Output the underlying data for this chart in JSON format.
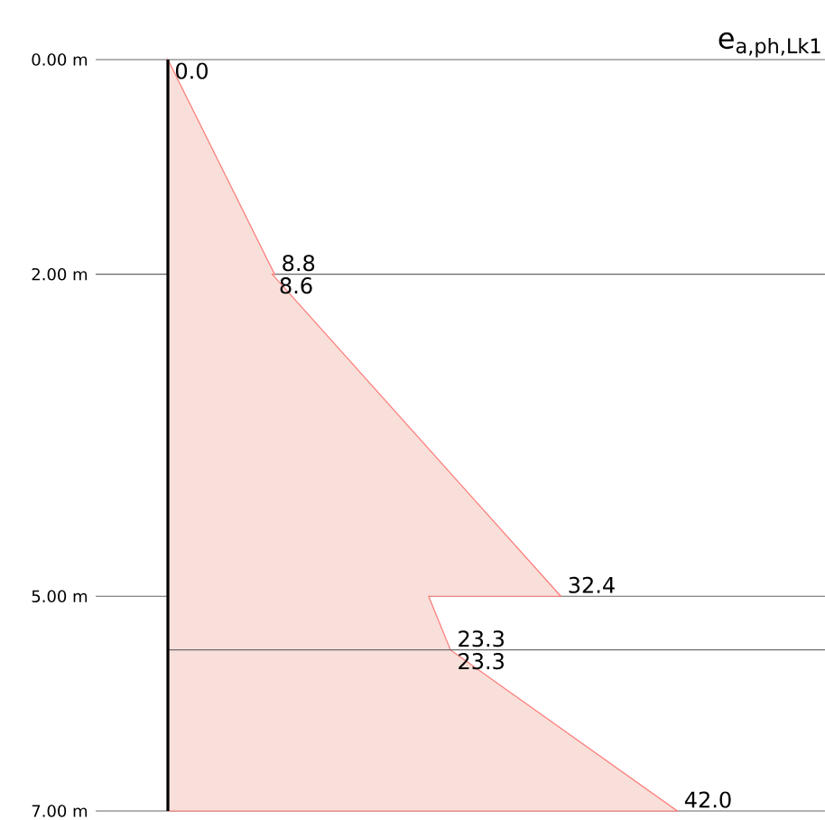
{
  "chart_data": {
    "type": "area",
    "orientation": "horizontal",
    "title": "e$_{a,ph,Lk1}$",
    "x": [
      0,
      2,
      2,
      5,
      5,
      5.5,
      5.5,
      7
    ],
    "values": [
      0,
      8.8,
      8.6,
      32.4,
      21.5,
      23.3,
      23.3,
      42.0
    ],
    "value_labels": [
      "0.0",
      "8.8",
      "8.6",
      "32.4",
      null,
      "23.3",
      "23.3",
      "42.0"
    ],
    "color": "#f8dfd9",
    "ylim": [
      7,
      0
    ],
    "yticks": [
      {
        "value": 0,
        "label": "0.00 m"
      },
      {
        "value": 2,
        "label": "2.00 m"
      },
      {
        "value": 5,
        "label": "5.00 m"
      },
      {
        "value": 7,
        "label": "7.00 m"
      }
    ],
    "tick_labels": "y",
    "grid": "y",
    "ref_lines": [
      {
        "axis": "y",
        "value": 5.5
      }
    ]
  }
}
